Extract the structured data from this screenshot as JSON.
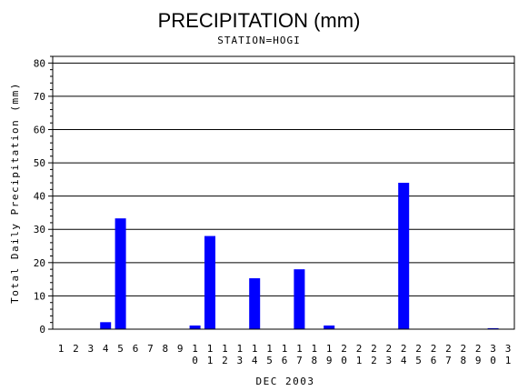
{
  "chart_data": {
    "type": "bar",
    "title": "PRECIPITATION (mm)",
    "subtitle": "STATION=HOGI",
    "xlabel": "DEC 2003",
    "ylabel": "Total Daily Precipitation (mm)",
    "ylim": [
      0,
      82
    ],
    "yticks": [
      0,
      10,
      20,
      30,
      40,
      50,
      60,
      70,
      80
    ],
    "grid": "horizontal",
    "bar_color": "#0000ff",
    "categories": [
      "1",
      "2",
      "3",
      "4",
      "5",
      "6",
      "7",
      "8",
      "9",
      "10",
      "11",
      "12",
      "13",
      "14",
      "15",
      "16",
      "17",
      "18",
      "19",
      "20",
      "21",
      "22",
      "23",
      "24",
      "25",
      "26",
      "27",
      "28",
      "29",
      "30",
      "31"
    ],
    "values": [
      0,
      0,
      0,
      2.1,
      33.3,
      0,
      0,
      0,
      0,
      1.1,
      28.0,
      0,
      0,
      15.3,
      0,
      0,
      18.0,
      0,
      1.1,
      0,
      0,
      0,
      0,
      44.0,
      0,
      0,
      0,
      0,
      0,
      0.3,
      0
    ]
  }
}
